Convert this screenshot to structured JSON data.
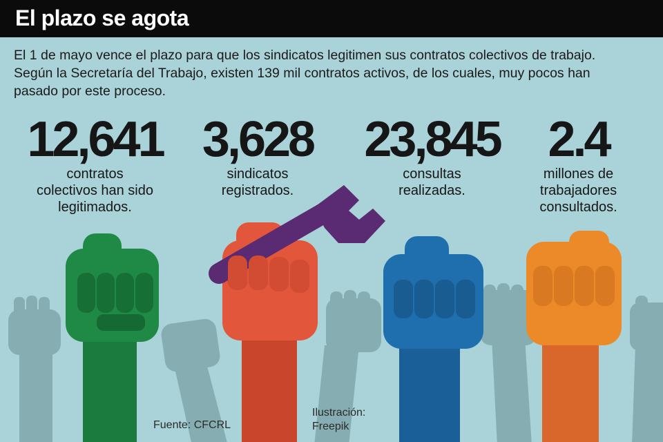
{
  "header": {
    "title": "El plazo se agota"
  },
  "intro": {
    "lines": [
      "El 1 de mayo vence el plazo para que los sindicatos legitimen sus contratos colectivos de trabajo.",
      "Según la Secretaría del Trabajo, existen 139 mil contratos activos, de los cuales, muy pocos han",
      "pasado por este proceso."
    ]
  },
  "stats": [
    {
      "value": "12,641",
      "lines": [
        "contratos",
        "colectivos han sido",
        "legitimados."
      ]
    },
    {
      "value": "3,628",
      "lines": [
        "sindicatos",
        "registrados."
      ]
    },
    {
      "value": "23,845",
      "lines": [
        "consultas",
        "realizadas."
      ]
    },
    {
      "value": "2.4",
      "lines": [
        "millones de",
        "trabajadores",
        "consultados."
      ]
    }
  ],
  "credits": {
    "source": "Fuente: CFCRL",
    "illustration": [
      "Ilustración:",
      "Freepik"
    ]
  },
  "colors": {
    "background": "#a9d3d9",
    "title_bar": "#0b0b0b",
    "fist_green": "#1e8a45",
    "fist_red": "#e2573b",
    "fist_blue": "#1f6fae",
    "fist_orange": "#ec8a2a",
    "wrench": "#5a2a72",
    "background_fists": "#86aeb2"
  }
}
